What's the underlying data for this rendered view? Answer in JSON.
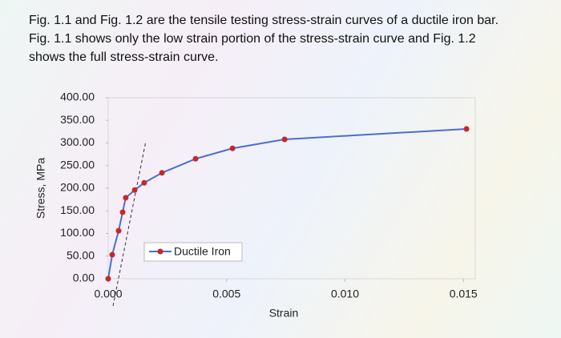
{
  "text": [
    "Fig. 1.1 and Fig. 1.2 are the tensile testing stress-strain curves of a ductile iron bar.",
    "Fig. 1.1 shows only the low strain portion of the stress-strain curve and Fig. 1.2",
    "shows the full stress-strain curve."
  ],
  "chart_data": {
    "type": "line",
    "x_label": "Strain",
    "y_label": "Stress, MPa",
    "x": [
      0,
      0.00017,
      0.00044,
      0.00061,
      0.00074,
      0.00112,
      0.00152,
      0.00227,
      0.00369,
      0.00525,
      0.00745,
      0.01513
    ],
    "series": [
      {
        "name": "Ductile Iron",
        "color": "#4a6fd0",
        "marker_color": "#c62828",
        "values": [
          0,
          53,
          106,
          147,
          179,
          196,
          212,
          234,
          265,
          288,
          308,
          331
        ]
      }
    ],
    "xlim": [
      0,
      0.0155
    ],
    "ylim": [
      0,
      400
    ],
    "xticks": [
      {
        "value": 0,
        "label": "0.000"
      },
      {
        "value": 0.005,
        "label": "0.005"
      },
      {
        "value": 0.01,
        "label": "0.010"
      },
      {
        "value": 0.015,
        "label": "0.015"
      }
    ],
    "yticks": [
      {
        "value": 0,
        "label": "0.00"
      },
      {
        "value": 50,
        "label": "50.00"
      },
      {
        "value": 100,
        "label": "100.00"
      },
      {
        "value": 150,
        "label": "150.00"
      },
      {
        "value": 200,
        "label": "200.00"
      },
      {
        "value": 250,
        "label": "250.00"
      },
      {
        "value": 300,
        "label": "300.00"
      },
      {
        "value": 350,
        "label": "350.00"
      },
      {
        "value": 400,
        "label": "400.00"
      }
    ],
    "grid": false
  }
}
